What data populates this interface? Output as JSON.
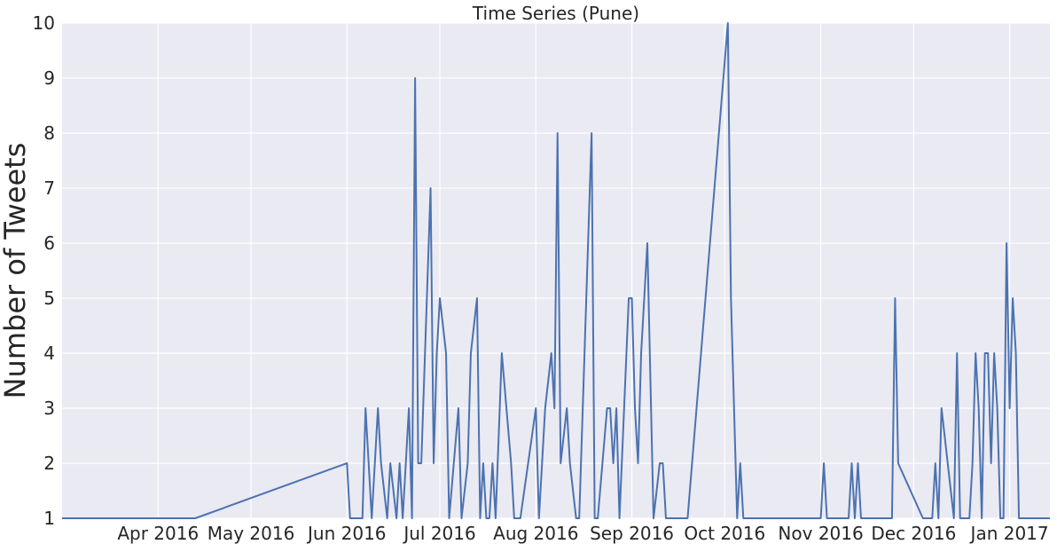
{
  "chart_data": {
    "type": "line",
    "title": "Time Series (Pune)",
    "xlabel": "",
    "ylabel": "Number of Tweets",
    "ylim": [
      1,
      10
    ],
    "xlim": [
      "2016-03-01",
      "2017-01-14"
    ],
    "grid": true,
    "legend": "none",
    "yticks": [
      1,
      2,
      3,
      4,
      5,
      6,
      7,
      8,
      9,
      10
    ],
    "xtick_dates": [
      "2016-04-01",
      "2016-05-01",
      "2016-06-01",
      "2016-07-01",
      "2016-08-01",
      "2016-09-01",
      "2016-10-01",
      "2016-11-01",
      "2016-12-01",
      "2017-01-01"
    ],
    "xtick_labels": [
      "Apr 2016",
      "May 2016",
      "Jun 2016",
      "Jul 2016",
      "Aug 2016",
      "Sep 2016",
      "Oct 2016",
      "Nov 2016",
      "Dec 2016",
      "Jan 2017"
    ],
    "colors": {
      "line": "#4c72b0",
      "plot_bg": "#eaeaf2",
      "grid": "#ffffff"
    },
    "series": [
      {
        "x": [
          "2016-03-01",
          "2016-04-13",
          "2016-06-01",
          "2016-06-02",
          "2016-06-06",
          "2016-06-07",
          "2016-06-09",
          "2016-06-11",
          "2016-06-12",
          "2016-06-14",
          "2016-06-15",
          "2016-06-17",
          "2016-06-18",
          "2016-06-19",
          "2016-06-21",
          "2016-06-22",
          "2016-06-23",
          "2016-06-24",
          "2016-06-25",
          "2016-06-28",
          "2016-06-29",
          "2016-06-30",
          "2016-07-01",
          "2016-07-03",
          "2016-07-04",
          "2016-07-07",
          "2016-07-08",
          "2016-07-10",
          "2016-07-11",
          "2016-07-13",
          "2016-07-14",
          "2016-07-15",
          "2016-07-16",
          "2016-07-17",
          "2016-07-18",
          "2016-07-19",
          "2016-07-21",
          "2016-07-24",
          "2016-07-25",
          "2016-07-27",
          "2016-08-01",
          "2016-08-02",
          "2016-08-03",
          "2016-08-04",
          "2016-08-06",
          "2016-08-07",
          "2016-08-08",
          "2016-08-09",
          "2016-08-11",
          "2016-08-12",
          "2016-08-14",
          "2016-08-15",
          "2016-08-19",
          "2016-08-20",
          "2016-08-21",
          "2016-08-24",
          "2016-08-25",
          "2016-08-26",
          "2016-08-27",
          "2016-08-28",
          "2016-08-31",
          "2016-09-01",
          "2016-09-02",
          "2016-09-03",
          "2016-09-04",
          "2016-09-06",
          "2016-09-08",
          "2016-09-10",
          "2016-09-11",
          "2016-09-12",
          "2016-09-13",
          "2016-09-15",
          "2016-09-16",
          "2016-09-17",
          "2016-09-18",
          "2016-09-19",
          "2016-10-02",
          "2016-10-03",
          "2016-10-04",
          "2016-10-05",
          "2016-10-06",
          "2016-10-07",
          "2016-10-08",
          "2016-10-09",
          "2016-11-01",
          "2016-11-02",
          "2016-11-03",
          "2016-11-10",
          "2016-11-11",
          "2016-11-12",
          "2016-11-13",
          "2016-11-14",
          "2016-11-24",
          "2016-11-25",
          "2016-11-26",
          "2016-12-04",
          "2016-12-05",
          "2016-12-06",
          "2016-12-07",
          "2016-12-08",
          "2016-12-09",
          "2016-12-10",
          "2016-12-14",
          "2016-12-15",
          "2016-12-16",
          "2016-12-17",
          "2016-12-18",
          "2016-12-19",
          "2016-12-20",
          "2016-12-21",
          "2016-12-22",
          "2016-12-23",
          "2016-12-24",
          "2016-12-25",
          "2016-12-26",
          "2016-12-27",
          "2016-12-28",
          "2016-12-29",
          "2016-12-30",
          "2016-12-31",
          "2017-01-01",
          "2017-01-02",
          "2017-01-03",
          "2017-01-04",
          "2017-01-05",
          "2017-01-06",
          "2017-01-07",
          "2017-01-08",
          "2017-01-09",
          "2017-01-10",
          "2017-01-11",
          "2017-01-12",
          "2017-01-13",
          "2017-01-14"
        ],
        "values": [
          1,
          1,
          2,
          1,
          1,
          3,
          1,
          3,
          2,
          1,
          2,
          1,
          2,
          1,
          3,
          1,
          9,
          2,
          2,
          7,
          2,
          4,
          5,
          4,
          1,
          3,
          1,
          2,
          4,
          5,
          1,
          2,
          1,
          1,
          2,
          1,
          4,
          2,
          1,
          1,
          3,
          1,
          2,
          3,
          4,
          3,
          8,
          2,
          3,
          2,
          1,
          1,
          8,
          1,
          1,
          3,
          3,
          2,
          3,
          1,
          5,
          5,
          3,
          2,
          4,
          6,
          1,
          2,
          2,
          1,
          1,
          1,
          1,
          1,
          1,
          1,
          10,
          5,
          3,
          1,
          2,
          1,
          1,
          1,
          1,
          2,
          1,
          1,
          2,
          1,
          2,
          1,
          1,
          5,
          2,
          1,
          1,
          1,
          1,
          2,
          1,
          3,
          1,
          4,
          1,
          1,
          1,
          1,
          2,
          4,
          3,
          1,
          4,
          4,
          2,
          4,
          3,
          1,
          1,
          6,
          3,
          5,
          4,
          1,
          1,
          1,
          1,
          1,
          1,
          1,
          1,
          1,
          1,
          1
        ]
      }
    ]
  }
}
